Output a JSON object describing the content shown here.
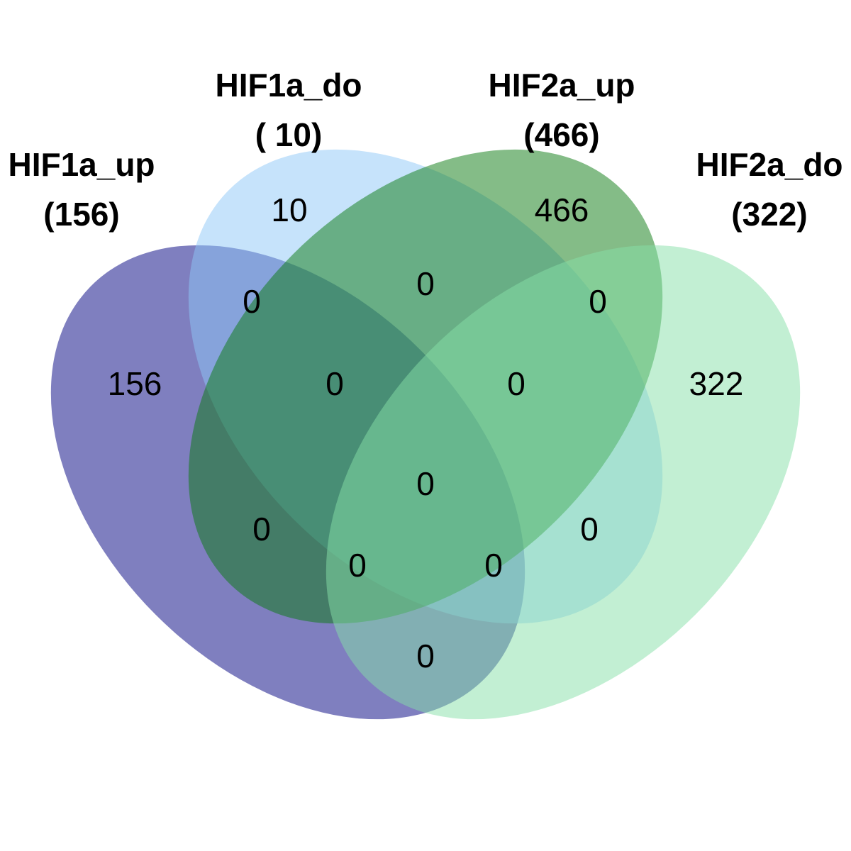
{
  "sets": [
    {
      "key": "hif1a_up",
      "name": "HIF1a_up",
      "total": "(156)",
      "color": "#00007F"
    },
    {
      "key": "hif1a_do",
      "name": "HIF1a_do",
      "total": "( 10)",
      "color": "#8EC8F8"
    },
    {
      "key": "hif2a_up",
      "name": "HIF2a_up",
      "total": "(466)",
      "color": "#0A7A10"
    },
    {
      "key": "hif2a_do",
      "name": "HIF2a_do",
      "total": "(322)",
      "color": "#86E0A8"
    }
  ],
  "regions": [
    {
      "key": "only_hif1a_up",
      "count": "156"
    },
    {
      "key": "only_hif1a_do",
      "count": "10"
    },
    {
      "key": "only_hif2a_up",
      "count": "466"
    },
    {
      "key": "only_hif2a_do",
      "count": "322"
    },
    {
      "key": "hif1a_up_hif1a_do",
      "count": "0"
    },
    {
      "key": "hif1a_do_hif2a_up",
      "count": "0"
    },
    {
      "key": "hif2a_up_hif2a_do",
      "count": "0"
    },
    {
      "key": "hif1a_up_hif1a_do_hif2a_up",
      "count": "0"
    },
    {
      "key": "hif1a_do_hif2a_up_hif2a_do",
      "count": "0"
    },
    {
      "key": "all_four",
      "count": "0"
    },
    {
      "key": "hif1a_up_hif2a_up",
      "count": "0"
    },
    {
      "key": "hif1a_do_hif2a_do",
      "count": "0"
    },
    {
      "key": "hif1a_up_hif2a_up_hif2a_do",
      "count": "0"
    },
    {
      "key": "hif1a_up_hif1a_do_hif2a_do",
      "count": "0"
    },
    {
      "key": "hif1a_up_hif2a_do",
      "count": "0"
    }
  ]
}
